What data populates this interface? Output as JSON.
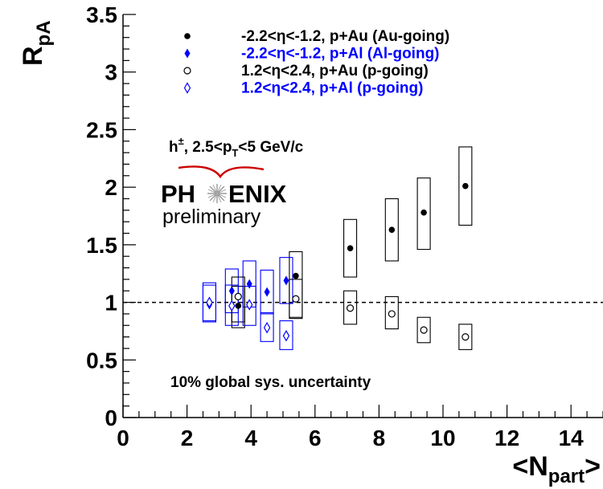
{
  "chart_data": {
    "type": "scatter",
    "xlabel": "<N",
    "xlabel_sub": "part",
    "xlabel_end": ">",
    "ylabel": "R",
    "ylabel_sub": "pA",
    "xlim": [
      0,
      15
    ],
    "ylim": [
      0,
      3.5
    ],
    "x_ticks": [
      "0",
      "2",
      "4",
      "6",
      "8",
      "10",
      "12",
      "14"
    ],
    "y_ticks": [
      "0",
      "0.5",
      "1",
      "1.5",
      "2",
      "2.5",
      "3",
      "3.5"
    ],
    "reference_line": 1,
    "series": [
      {
        "name": "-2.2<η<-1.2, p+Au (Au-going)",
        "color": "#000000",
        "marker": "filled-circle",
        "x": [
          3.6,
          5.4,
          7.1,
          8.4,
          9.4,
          10.7
        ],
        "y": [
          0.97,
          1.23,
          1.47,
          1.63,
          1.78,
          2.01
        ],
        "sys_low": [
          0.78,
          0.87,
          1.22,
          1.36,
          1.46,
          1.67
        ],
        "sys_high": [
          1.14,
          1.44,
          1.72,
          1.9,
          2.08,
          2.35
        ]
      },
      {
        "name": "-2.2<η<-1.2, p+Al (Al-going)",
        "color": "#0000ff",
        "marker": "filled-diamond",
        "x": [
          2.7,
          3.4,
          3.95,
          4.5,
          5.1
        ],
        "y": [
          0.98,
          1.1,
          1.16,
          1.09,
          1.19
        ],
        "sys_low": [
          0.83,
          0.91,
          0.96,
          0.9,
          0.99
        ],
        "sys_high": [
          1.17,
          1.29,
          1.36,
          1.28,
          1.39
        ]
      },
      {
        "name": "1.2<η<2.4, p+Au (p-going)",
        "color": "#000000",
        "marker": "open-circle",
        "x": [
          3.6,
          5.4,
          7.1,
          8.4,
          9.4,
          10.7
        ],
        "y": [
          1.05,
          1.03,
          0.95,
          0.9,
          0.76,
          0.7
        ],
        "sys_low": [
          0.83,
          0.86,
          0.81,
          0.77,
          0.65,
          0.59
        ],
        "sys_high": [
          1.22,
          1.2,
          1.1,
          1.05,
          0.87,
          0.81
        ]
      },
      {
        "name": "1.2<η<2.4, p+Al (p-going)",
        "color": "#0000ff",
        "marker": "open-diamond",
        "x": [
          2.7,
          3.4,
          3.95,
          4.5,
          5.1
        ],
        "y": [
          1.0,
          0.97,
          0.98,
          0.78,
          0.71
        ],
        "sys_low": [
          0.84,
          0.8,
          0.8,
          0.66,
          0.59
        ],
        "sys_high": [
          1.15,
          1.15,
          1.14,
          0.91,
          0.84
        ]
      }
    ],
    "legend_position": "top-right"
  },
  "annotations": {
    "kinematics": "h±, 2.5<pT<5 GeV/c",
    "kin_h": "h",
    "kin_pm": "±",
    "kin_mid": ", 2.5<p",
    "kin_T": "T",
    "kin_end": "<5 GeV/c",
    "sys_note": "10% global sys. uncertainty"
  },
  "logo": {
    "text_left": "PH",
    "text_right": "ENIX",
    "subtitle": "preliminary",
    "arc_color": "#cc0000"
  }
}
